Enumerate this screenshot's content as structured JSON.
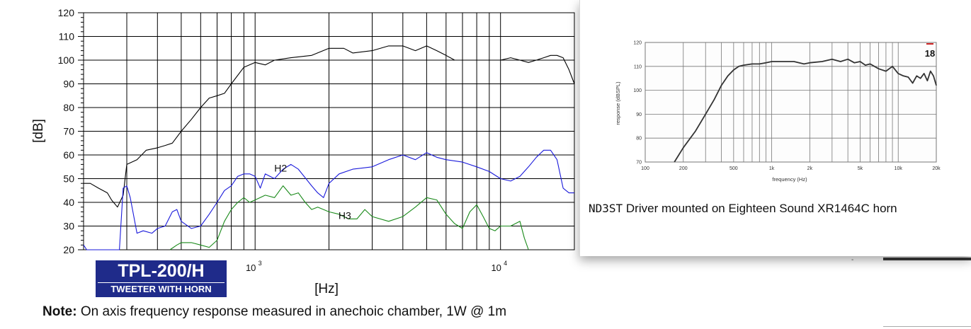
{
  "main": {
    "xlabel": "[Hz]",
    "ylabel": "[dB]",
    "logo_line1": "TPL-200/H",
    "logo_line2": "TWEETER WITH HORN",
    "note_bold": "Note:",
    "note_text": " On axis frequency response measured in anechoic chamber, 1W @ 1m"
  },
  "popup": {
    "caption_model": "ND3ST",
    "caption_text": " Driver mounted on Eighteen Sound XR1464C horn",
    "badge": "18"
  },
  "chart_data": [
    {
      "type": "line",
      "xscale": "log",
      "xlim": [
        200,
        20000
      ],
      "ylim": [
        20,
        120
      ],
      "yticks": [
        20,
        30,
        40,
        50,
        60,
        70,
        80,
        90,
        100,
        110,
        120
      ],
      "xtick_labels": [
        {
          "value": 1000,
          "base": "10",
          "exp": "3"
        },
        {
          "value": 10000,
          "base": "10",
          "exp": "4"
        }
      ],
      "xlabel": "[Hz]",
      "ylabel": "[dB]",
      "grid": true,
      "annotations": [
        {
          "text": "H2",
          "x": 1270,
          "y": 53
        },
        {
          "text": "H3",
          "x": 2320,
          "y": 33
        }
      ],
      "series": [
        {
          "color": "#000000",
          "x": [
            200,
            213,
            230,
            250,
            260,
            275,
            290,
            300,
            330,
            360,
            400,
            430,
            460,
            500,
            550,
            600,
            650,
            700,
            750,
            800,
            900,
            1000,
            1100,
            1200,
            1400,
            1700,
            2000,
            2300,
            2500,
            3000,
            3500,
            4000,
            4500,
            5000,
            5500,
            6000,
            6500,
            7000,
            8000,
            9000,
            10000,
            11000,
            12000,
            13000,
            14000,
            15000,
            16000,
            17000,
            18000,
            19000,
            20000
          ],
          "y": [
            48,
            48,
            46,
            44,
            41,
            38,
            43,
            56,
            58,
            62,
            63,
            64,
            65,
            70,
            75,
            80,
            84,
            85,
            86,
            90,
            97,
            99,
            98,
            100,
            101,
            102,
            105,
            105,
            103,
            104,
            106,
            106,
            104,
            106,
            104,
            102,
            100,
            100,
            100,
            100,
            100,
            101,
            100,
            99,
            100,
            101,
            102,
            102,
            101,
            96,
            90
          ]
        },
        {
          "color": "#1a1adb",
          "x": [
            200,
            206,
            220,
            250,
            270,
            280,
            290,
            300,
            310,
            330,
            350,
            380,
            400,
            430,
            460,
            480,
            500,
            550,
            600,
            650,
            700,
            750,
            800,
            850,
            900,
            950,
            1000,
            1050,
            1100,
            1200,
            1300,
            1400,
            1500,
            1700,
            1800,
            1900,
            2000,
            2200,
            2500,
            3000,
            3500,
            4000,
            4500,
            5000,
            5500,
            6000,
            7000,
            8000,
            9000,
            10000,
            11000,
            12000,
            13000,
            14000,
            15000,
            16000,
            17000,
            18000,
            19000,
            20000
          ],
          "y": [
            22,
            20,
            20,
            20,
            20,
            20,
            46,
            47,
            42,
            27,
            28,
            27,
            29,
            30,
            36,
            37,
            32,
            29,
            30,
            35,
            40,
            45,
            47,
            51,
            52,
            52,
            51,
            46,
            52,
            50,
            54,
            56,
            54,
            47,
            44,
            42,
            48,
            52,
            54,
            55,
            58,
            60,
            58,
            61,
            59,
            58,
            57,
            55,
            53,
            50,
            49,
            51,
            55,
            59,
            62,
            62,
            58,
            46,
            44,
            44
          ]
        },
        {
          "color": "#1a8a1a",
          "x": [
            450,
            480,
            500,
            550,
            600,
            650,
            700,
            750,
            800,
            850,
            900,
            950,
            1000,
            1100,
            1200,
            1300,
            1400,
            1500,
            1600,
            1700,
            1800,
            2000,
            2200,
            2400,
            2600,
            2800,
            3000,
            3500,
            4000,
            4500,
            5000,
            5500,
            6000,
            6500,
            7000,
            7500,
            8000,
            8500,
            9000,
            9500,
            10000,
            11000,
            12000,
            12500,
            13000
          ],
          "y": [
            20,
            22,
            23,
            23,
            22,
            21,
            24,
            32,
            37,
            40,
            42,
            40,
            41,
            43,
            42,
            47,
            43,
            44,
            40,
            37,
            38,
            36,
            35,
            33,
            33,
            37,
            34,
            32,
            34,
            38,
            42,
            41,
            35,
            31,
            29,
            36,
            39,
            34,
            29,
            28,
            30,
            30,
            32,
            25,
            20
          ]
        }
      ]
    },
    {
      "type": "line",
      "xscale": "log",
      "xlim": [
        100,
        20000
      ],
      "ylim": [
        70,
        120
      ],
      "yticks": [
        70,
        80,
        90,
        100,
        110,
        120
      ],
      "xtick_labels": [
        "100",
        "200",
        "500",
        "1k",
        "2k",
        "5k",
        "10k",
        "20k"
      ],
      "xtick_values": [
        100,
        200,
        500,
        1000,
        2000,
        5000,
        10000,
        20000
      ],
      "xlabel": "frequency (Hz)",
      "ylabel": "response (dBSPL)",
      "grid": true,
      "series": [
        {
          "color": "#333333",
          "x": [
            170,
            200,
            250,
            300,
            350,
            400,
            450,
            500,
            550,
            600,
            700,
            800,
            900,
            1000,
            1200,
            1500,
            1800,
            2000,
            2500,
            3000,
            3500,
            4000,
            4500,
            5000,
            5500,
            6000,
            7000,
            8000,
            9000,
            10000,
            11000,
            12000,
            13000,
            14000,
            15000,
            16000,
            17000,
            18000,
            19000,
            20000
          ],
          "y": [
            70,
            76,
            83,
            90,
            96,
            102,
            106,
            108.5,
            110,
            110.5,
            111,
            111,
            111.5,
            112,
            112,
            112,
            111,
            111.5,
            112,
            113,
            112,
            113,
            111.5,
            112,
            110.5,
            111,
            109,
            108,
            110,
            107,
            106,
            105.5,
            103,
            106,
            105,
            107,
            104,
            108,
            106,
            102
          ]
        }
      ]
    }
  ]
}
